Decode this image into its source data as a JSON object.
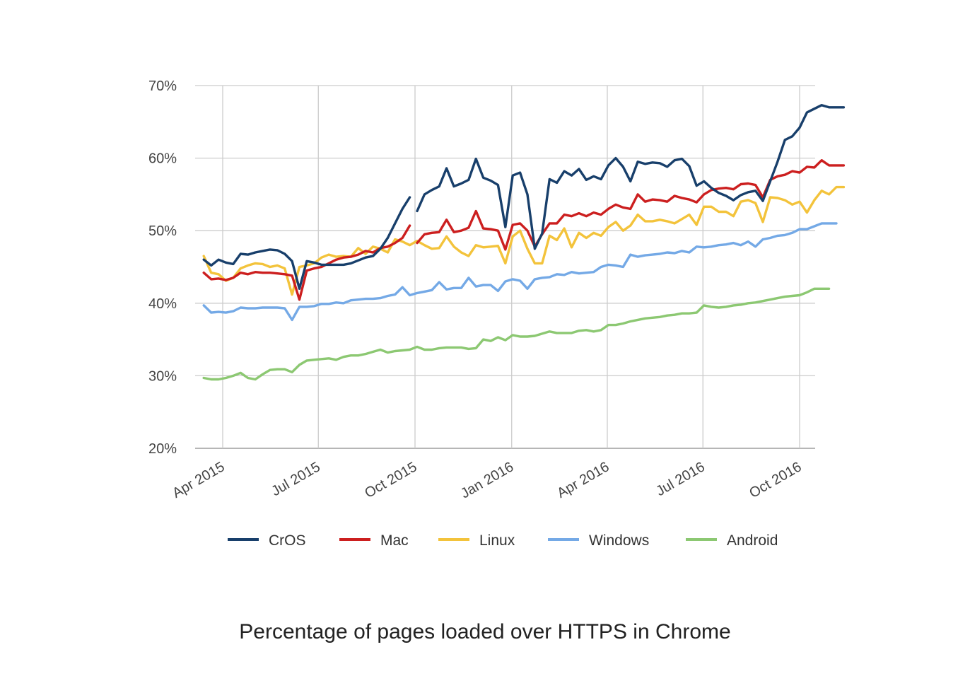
{
  "caption": "Percentage of pages loaded over HTTPS in Chrome",
  "chart_data": {
    "type": "line",
    "title": "",
    "xlabel": "",
    "ylabel": "",
    "ylim": [
      20,
      70
    ],
    "y_ticks": [
      20,
      30,
      40,
      50,
      60,
      70
    ],
    "y_tick_labels": [
      "20%",
      "30%",
      "40%",
      "50%",
      "60%",
      "70%"
    ],
    "x_ticks": [
      "Apr 2015",
      "Jul 2015",
      "Oct 2015",
      "Jan 2016",
      "Apr 2016",
      "Jul 2016",
      "Oct 2016"
    ],
    "grid": true,
    "legend_position": "bottom",
    "x_start": "2015-03-14",
    "x_step_weeks": 1,
    "series": [
      {
        "name": "CrOS",
        "color": "#183f6b",
        "values": [
          46.0,
          45.2,
          46.0,
          45.6,
          45.4,
          46.8,
          46.7,
          47.0,
          47.2,
          47.4,
          47.3,
          46.8,
          45.8,
          42.0,
          45.8,
          45.6,
          45.3,
          45.3,
          45.3,
          45.3,
          45.5,
          45.9,
          46.3,
          46.5,
          47.5,
          49.0,
          51.0,
          53.0,
          54.6,
          52.7,
          55.0,
          55.6,
          56.1,
          58.6,
          56.1,
          56.5,
          57.0,
          59.9,
          57.3,
          56.9,
          56.3,
          50.5,
          57.6,
          58.0,
          55.0,
          47.5,
          49.6,
          57.1,
          56.6,
          58.2,
          57.6,
          58.5,
          57.0,
          57.5,
          57.1,
          59.0,
          60.0,
          58.8,
          56.8,
          59.5,
          59.2,
          59.4,
          59.3,
          58.8,
          59.7,
          59.9,
          58.9,
          56.2,
          56.8,
          55.9,
          55.2,
          54.8,
          54.2,
          54.9,
          55.3,
          55.5,
          54.1,
          56.8,
          59.5,
          62.5,
          63.0,
          64.2,
          66.3,
          66.8,
          67.3,
          67.0,
          67.0,
          67.0
        ],
        "gaps_after": [
          28
        ]
      },
      {
        "name": "Mac",
        "color": "#cc1f1f",
        "values": [
          44.2,
          43.3,
          43.4,
          43.2,
          43.5,
          44.2,
          44.0,
          44.3,
          44.2,
          44.2,
          44.1,
          44.0,
          43.8,
          40.5,
          44.5,
          44.8,
          45.0,
          45.5,
          46.0,
          46.3,
          46.4,
          46.7,
          47.2,
          47.0,
          47.6,
          47.8,
          48.3,
          49.0,
          50.7,
          48.3,
          49.5,
          49.7,
          49.8,
          51.5,
          49.8,
          50.0,
          50.4,
          52.7,
          50.3,
          50.2,
          50.0,
          47.4,
          50.8,
          51.0,
          50.0,
          47.8,
          49.5,
          51.0,
          51.0,
          52.2,
          52.0,
          52.4,
          52.0,
          52.5,
          52.2,
          53.0,
          53.6,
          53.2,
          53.0,
          55.0,
          54.0,
          54.3,
          54.2,
          54.0,
          54.8,
          54.5,
          54.3,
          53.9,
          55.0,
          55.6,
          55.8,
          55.9,
          55.7,
          56.4,
          56.5,
          56.3,
          54.6,
          57.0,
          57.5,
          57.7,
          58.2,
          58.0,
          58.8,
          58.7,
          59.7,
          59.0,
          59.0,
          59.0
        ],
        "gaps_after": [
          28
        ]
      },
      {
        "name": "Linux",
        "color": "#f3c33b",
        "values": [
          46.5,
          44.2,
          44.0,
          43.1,
          43.5,
          44.8,
          45.2,
          45.5,
          45.4,
          45.0,
          45.2,
          44.8,
          41.2,
          45.0,
          45.2,
          45.5,
          46.3,
          46.7,
          46.4,
          46.5,
          46.4,
          47.6,
          46.8,
          47.8,
          47.5,
          47.0,
          48.8,
          48.5,
          48.0,
          48.6,
          48.0,
          47.5,
          47.6,
          49.2,
          47.8,
          47.0,
          46.5,
          48.0,
          47.7,
          47.8,
          47.9,
          45.5,
          49.2,
          50.0,
          47.5,
          45.5,
          45.5,
          49.3,
          48.7,
          50.3,
          47.7,
          49.7,
          49.0,
          49.7,
          49.3,
          50.5,
          51.2,
          50.0,
          50.7,
          52.2,
          51.3,
          51.3,
          51.5,
          51.3,
          51.0,
          51.6,
          52.2,
          50.8,
          53.3,
          53.3,
          52.6,
          52.6,
          52.0,
          54.0,
          54.2,
          53.8,
          51.2,
          54.6,
          54.5,
          54.2,
          53.6,
          54.0,
          52.5,
          54.2,
          55.5,
          55.0,
          56.0,
          56.0
        ],
        "gaps_after": []
      },
      {
        "name": "Windows",
        "color": "#74a9e6",
        "values": [
          39.7,
          38.7,
          38.8,
          38.7,
          38.9,
          39.4,
          39.3,
          39.3,
          39.4,
          39.4,
          39.4,
          39.3,
          37.7,
          39.5,
          39.5,
          39.6,
          39.9,
          39.9,
          40.1,
          40.0,
          40.4,
          40.5,
          40.6,
          40.6,
          40.7,
          41.0,
          41.2,
          42.2,
          41.1,
          41.4,
          41.6,
          41.8,
          42.9,
          41.9,
          42.1,
          42.1,
          43.5,
          42.3,
          42.5,
          42.5,
          41.7,
          43.0,
          43.3,
          43.1,
          42.0,
          43.3,
          43.5,
          43.6,
          44.0,
          43.9,
          44.3,
          44.1,
          44.2,
          44.3,
          45.0,
          45.3,
          45.2,
          45.0,
          46.7,
          46.4,
          46.6,
          46.7,
          46.8,
          47.0,
          46.9,
          47.2,
          47.0,
          47.8,
          47.7,
          47.8,
          48.0,
          48.1,
          48.3,
          48.0,
          48.5,
          47.8,
          48.8,
          49.0,
          49.3,
          49.4,
          49.7,
          50.2,
          50.2,
          50.6,
          51.0,
          51.0,
          51.0
        ],
        "gaps_after": []
      },
      {
        "name": "Android",
        "color": "#8cc872",
        "values": [
          29.7,
          29.5,
          29.5,
          29.7,
          30.0,
          30.4,
          29.7,
          29.5,
          30.2,
          30.8,
          30.9,
          30.9,
          30.5,
          31.5,
          32.1,
          32.2,
          32.3,
          32.4,
          32.2,
          32.6,
          32.8,
          32.8,
          33.0,
          33.3,
          33.6,
          33.2,
          33.4,
          33.5,
          33.6,
          34.0,
          33.6,
          33.6,
          33.8,
          33.9,
          33.9,
          33.9,
          33.7,
          33.8,
          35.0,
          34.8,
          35.3,
          34.9,
          35.6,
          35.4,
          35.4,
          35.5,
          35.8,
          36.1,
          35.9,
          35.9,
          35.9,
          36.2,
          36.3,
          36.1,
          36.3,
          37.0,
          37.0,
          37.2,
          37.5,
          37.7,
          37.9,
          38.0,
          38.1,
          38.3,
          38.4,
          38.6,
          38.6,
          38.7,
          39.7,
          39.5,
          39.4,
          39.5,
          39.7,
          39.8,
          40.0,
          40.1,
          40.3,
          40.5,
          40.7,
          40.9,
          41.0,
          41.1,
          41.5,
          42.0,
          42.0,
          42.0
        ],
        "gaps_after": []
      }
    ]
  }
}
